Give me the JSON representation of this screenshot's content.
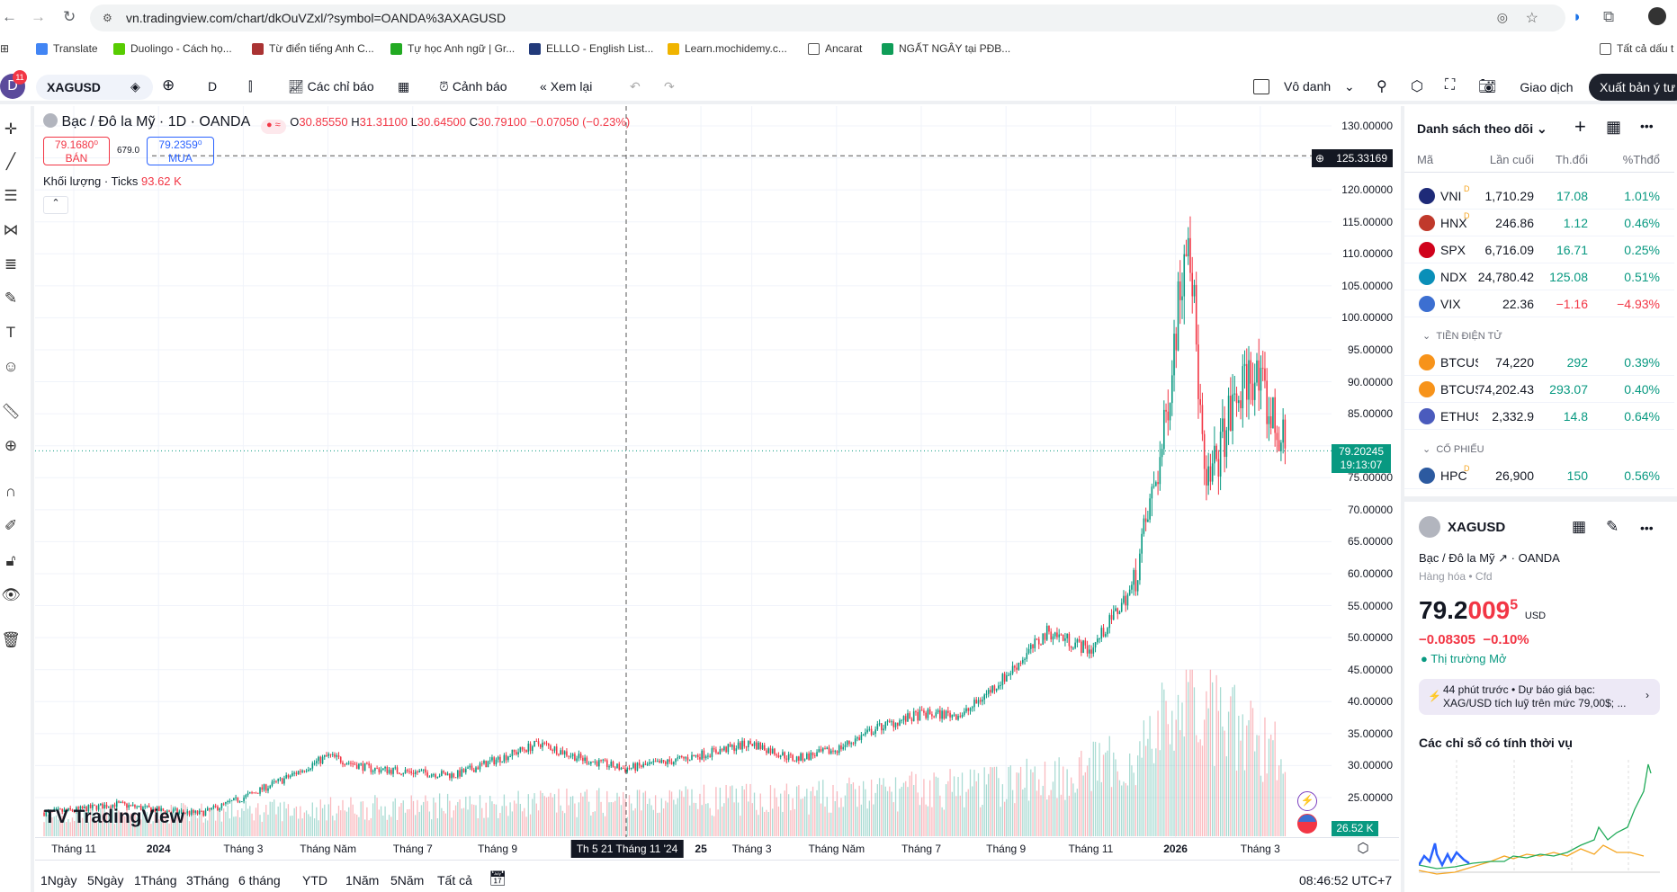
{
  "browser": {
    "url": "vn.tradingview.com/chart/dkOuVZxl/?symbol=OANDA%3AXAGUSD",
    "bookmarks": [
      "Translate",
      "Duolingo - Cách họ...",
      "Từ điển tiếng Anh C...",
      "Tự học Anh ngữ | Gr...",
      "ELLLO - English List...",
      "Learn.mochidemy.c...",
      "Ancarat",
      "NGẤT NGÂY tại PĐB..."
    ],
    "all_bookmarks": "Tất cả dấu t"
  },
  "toolbar": {
    "avatar": "D",
    "notifications": "11",
    "symbol": "XAGUSD",
    "interval": "D",
    "indicators": "Các chỉ báo",
    "alert": "Cảnh báo",
    "replay": "Xem lại",
    "layout_name": "Vô danh",
    "trade": "Giao dịch",
    "publish": "Xuất bản ý tư"
  },
  "legend": {
    "title": "Bạc / Đô la Mỹ · 1D · OANDA",
    "o_label": "O",
    "o": "30.85550",
    "h_label": "H",
    "h": "31.31100",
    "l_label": "L",
    "l": "30.64500",
    "c_label": "C",
    "c": "30.79100",
    "change": "−0.07050 (−0.23%)",
    "sell_price": "79.1680⁰",
    "sell_label": "BÁN",
    "spread": "679.0",
    "buy_price": "79.2359⁰",
    "buy_label": "MUA",
    "volume_label": "Khối lượng · Ticks",
    "volume_value": "93.62 K"
  },
  "crosshair": {
    "price": "125.33169",
    "date": "Th 5 21 Tháng 11 '24"
  },
  "last_price": {
    "price": "79.20245",
    "countdown": "19:13:07"
  },
  "volume_last": "26.52 K",
  "chart_data": {
    "type": "candlestick",
    "title": "Bạc / Đô la Mỹ · 1D · OANDA",
    "ylim": [
      20,
      132
    ],
    "yticks": [
      "130.00000",
      "120.00000",
      "115.00000",
      "110.00000",
      "105.00000",
      "100.00000",
      "95.00000",
      "90.00000",
      "85.00000",
      "75.00000",
      "70.00000",
      "65.00000",
      "60.00000",
      "55.00000",
      "50.00000",
      "45.00000",
      "40.00000",
      "35.00000",
      "30.00000",
      "25.00000"
    ],
    "xticks": [
      {
        "label": "Tháng 11",
        "m": 1,
        "bold": false
      },
      {
        "label": "2024",
        "m": 3,
        "bold": true
      },
      {
        "label": "Tháng 3",
        "m": 5,
        "bold": false
      },
      {
        "label": "Tháng Năm",
        "m": 7,
        "bold": false
      },
      {
        "label": "Tháng 7",
        "m": 9,
        "bold": false
      },
      {
        "label": "Tháng 9",
        "m": 11,
        "bold": false
      },
      {
        "label": "25",
        "m": 15.8,
        "bold": true
      },
      {
        "label": "Tháng 3",
        "m": 17,
        "bold": false
      },
      {
        "label": "Tháng Năm",
        "m": 19,
        "bold": false
      },
      {
        "label": "Tháng 7",
        "m": 21,
        "bold": false
      },
      {
        "label": "Tháng 9",
        "m": 23,
        "bold": false
      },
      {
        "label": "Tháng 11",
        "m": 25,
        "bold": false
      },
      {
        "label": "2026",
        "m": 27,
        "bold": true
      },
      {
        "label": "Tháng 3",
        "m": 29,
        "bold": false
      }
    ],
    "monthly_close": [
      [
        0,
        22.5
      ],
      [
        1,
        23
      ],
      [
        2,
        24
      ],
      [
        3,
        23
      ],
      [
        4,
        22.5
      ],
      [
        5,
        25
      ],
      [
        6,
        28
      ],
      [
        7,
        31.5
      ],
      [
        8,
        29.5
      ],
      [
        9,
        29
      ],
      [
        10,
        28.5
      ],
      [
        11,
        31
      ],
      [
        12,
        33.5
      ],
      [
        13,
        31
      ],
      [
        14,
        29.5
      ],
      [
        15,
        30.5
      ],
      [
        16,
        32
      ],
      [
        17,
        33.5
      ],
      [
        18,
        31
      ],
      [
        19,
        32.5
      ],
      [
        20,
        36
      ],
      [
        21,
        38
      ],
      [
        22,
        38
      ],
      [
        23,
        44
      ],
      [
        24,
        51
      ],
      [
        25,
        48
      ],
      [
        26,
        58
      ],
      [
        26.7,
        80
      ],
      [
        27.3,
        117
      ],
      [
        27.7,
        72
      ],
      [
        28.3,
        85
      ],
      [
        28.8,
        92
      ],
      [
        29.6,
        79.2
      ]
    ],
    "monthly_volume_k": [
      [
        0,
        20
      ],
      [
        6,
        28
      ],
      [
        12,
        35
      ],
      [
        18,
        40
      ],
      [
        23,
        55
      ],
      [
        26,
        80
      ],
      [
        27.3,
        150
      ],
      [
        28,
        120
      ],
      [
        29.6,
        90
      ]
    ]
  },
  "watchlist": {
    "title": "Danh sách theo dõi",
    "cols": [
      "Mã",
      "Lần cuối",
      "Th.đổi",
      "%Thđổ"
    ],
    "rows": [
      {
        "sym": "VNI",
        "last": "1,710.29",
        "chg": "17.08",
        "pct": "1.01%",
        "up": true,
        "ic": "#1e2a78",
        "badge": "D"
      },
      {
        "sym": "HNX",
        "last": "246.86",
        "chg": "1.12",
        "pct": "0.46%",
        "up": true,
        "ic": "#c0392b",
        "badge": "D"
      },
      {
        "sym": "SPX",
        "last": "6,716.09",
        "chg": "16.71",
        "pct": "0.25%",
        "up": true,
        "ic": "#d0021b",
        "badge": ""
      },
      {
        "sym": "NDX",
        "last": "24,780.42",
        "chg": "125.08",
        "pct": "0.51%",
        "up": true,
        "ic": "#0a8fb8",
        "badge": ""
      },
      {
        "sym": "VIX",
        "last": "22.36",
        "chg": "−1.16",
        "pct": "−4.93%",
        "up": false,
        "ic": "#3c6fd1",
        "badge": ""
      }
    ],
    "sec1": "TIỀN ĐIỆN TỬ",
    "rows2": [
      {
        "sym": "BTCUS",
        "last": "74,220",
        "chg": "292",
        "pct": "0.39%",
        "up": true,
        "ic": "#f7931a"
      },
      {
        "sym": "BTCUS",
        "last": "74,202.43",
        "chg": "293.07",
        "pct": "0.40%",
        "up": true,
        "ic": "#f7931a"
      },
      {
        "sym": "ETHUS",
        "last": "2,332.9",
        "chg": "14.8",
        "pct": "0.64%",
        "up": true,
        "ic": "#4a5bbd"
      }
    ],
    "sec2": "CỔ PHIẾU",
    "rows3": [
      {
        "sym": "HPC",
        "last": "26,900",
        "chg": "150",
        "pct": "0.56%",
        "up": true,
        "ic": "#2c5aa0",
        "badge": "D"
      }
    ]
  },
  "details": {
    "symbol": "XAGUSD",
    "name": "Bạc / Đô la Mỹ",
    "exchange": "OANDA",
    "type": "Hàng hóa",
    "subtype": "Cfd",
    "price_main": "79.2",
    "price_red": "009",
    "price_sup": "5",
    "currency": "USD",
    "change": "−0.08305",
    "change_pct": "−0.10%",
    "market": "Thị trường Mở",
    "news_time": "44 phút trước",
    "news_line1": "Dự báo giá bạc:",
    "news_line2": "XAG/USD tích luỹ trên mức 79,00$; ...",
    "seasonal_title": "Các chỉ số có tính thời vụ"
  },
  "ranges": [
    "1Ngày",
    "5Ngày",
    "1Tháng",
    "3Tháng",
    "6 tháng",
    "YTD",
    "1Năm",
    "5Năm",
    "Tất cả"
  ],
  "clock": "08:46:52 UTC+7",
  "colors": {
    "up": "#089981",
    "down": "#f23645"
  }
}
